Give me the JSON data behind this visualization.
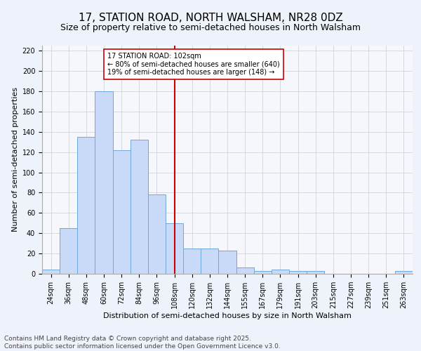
{
  "title": "17, STATION ROAD, NORTH WALSHAM, NR28 0DZ",
  "subtitle": "Size of property relative to semi-detached houses in North Walsham",
  "xlabel": "Distribution of semi-detached houses by size in North Walsham",
  "ylabel": "Number of semi-detached properties",
  "categories": [
    "24sqm",
    "36sqm",
    "48sqm",
    "60sqm",
    "72sqm",
    "84sqm",
    "96sqm",
    "108sqm",
    "120sqm",
    "132sqm",
    "144sqm",
    "155sqm",
    "167sqm",
    "179sqm",
    "191sqm",
    "203sqm",
    "215sqm",
    "227sqm",
    "239sqm",
    "251sqm",
    "263sqm"
  ],
  "values": [
    4,
    45,
    135,
    180,
    122,
    132,
    78,
    50,
    25,
    25,
    23,
    6,
    3,
    4,
    3,
    3,
    0,
    0,
    0,
    0,
    3
  ],
  "bar_color": "#c9daf8",
  "bar_edge_color": "#6fa8dc",
  "marker_bin_index": 7,
  "marker_line_color": "#cc0000",
  "annotation_title": "17 STATION ROAD: 102sqm",
  "annotation_line1": "← 80% of semi-detached houses are smaller (640)",
  "annotation_line2": "19% of semi-detached houses are larger (148) →",
  "annotation_box_color": "#ffffff",
  "annotation_box_edge_color": "#cc0000",
  "ylim": [
    0,
    225
  ],
  "yticks": [
    0,
    20,
    40,
    60,
    80,
    100,
    120,
    140,
    160,
    180,
    200,
    220
  ],
  "footnote1": "Contains HM Land Registry data © Crown copyright and database right 2025.",
  "footnote2": "Contains public sector information licensed under the Open Government Licence v3.0.",
  "background_color": "#eef2fa",
  "plot_background_color": "#f5f7fd",
  "title_fontsize": 11,
  "subtitle_fontsize": 9,
  "axis_label_fontsize": 8,
  "tick_fontsize": 7,
  "footnote_fontsize": 6.5
}
